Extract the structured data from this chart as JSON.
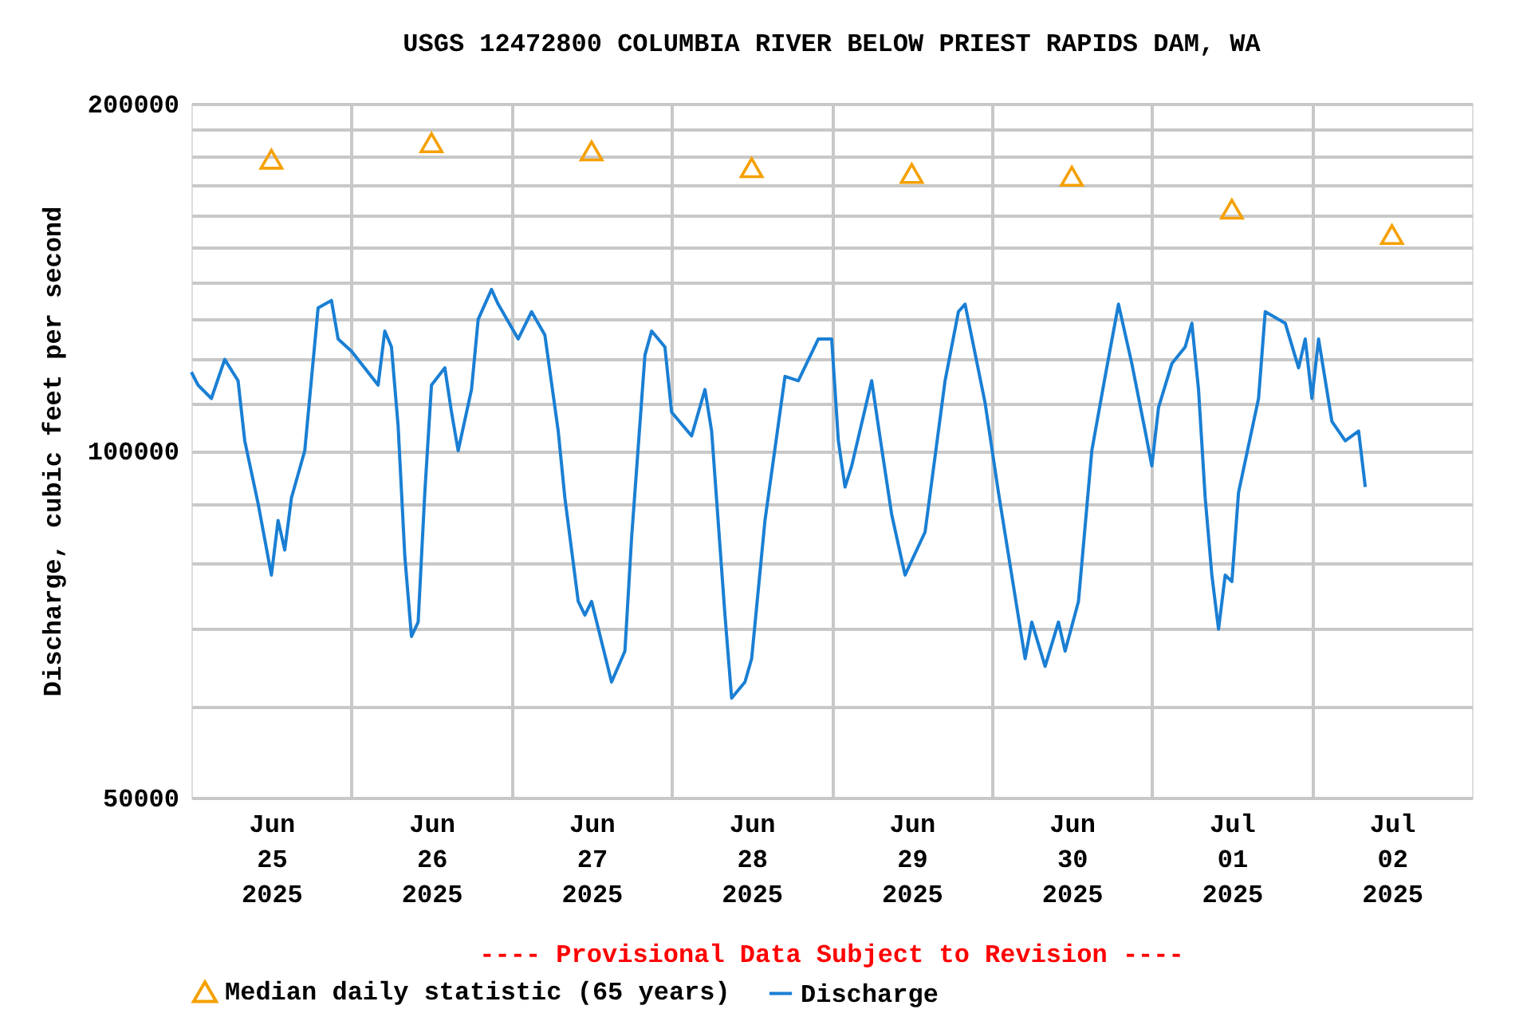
{
  "chart_data": {
    "type": "line",
    "title": "USGS 12472800 COLUMBIA RIVER BELOW PRIEST RAPIDS DAM, WA",
    "ylabel": "Discharge, cubic feet per second",
    "log": "y",
    "grid": true,
    "legend": "bottom",
    "xlim": [
      "2025-06-25T00:00",
      "2025-07-03T00:00"
    ],
    "xticks": [
      {
        "value": "2025-06-25T12:00",
        "label": "Jun\n25\n2025"
      },
      {
        "value": "2025-06-26T12:00",
        "label": "Jun\n26\n2025"
      },
      {
        "value": "2025-06-27T12:00",
        "label": "Jun\n27\n2025"
      },
      {
        "value": "2025-06-28T12:00",
        "label": "Jun\n28\n2025"
      },
      {
        "value": "2025-06-29T12:00",
        "label": "Jun\n29\n2025"
      },
      {
        "value": "2025-06-30T12:00",
        "label": "Jun\n30\n2025"
      },
      {
        "value": "2025-07-01T12:00",
        "label": "Jul\n01\n2025"
      },
      {
        "value": "2025-07-02T12:00",
        "label": "Jul\n02\n2025"
      },
      {
        "value": "2025-06-26T00:00",
        "label": null
      },
      {
        "value": "2025-06-27T00:00",
        "label": null
      },
      {
        "value": "2025-06-28T00:00",
        "label": null
      },
      {
        "value": "2025-06-29T00:00",
        "label": null
      },
      {
        "value": "2025-06-30T00:00",
        "label": null
      },
      {
        "value": "2025-07-01T00:00",
        "label": null
      },
      {
        "value": "2025-07-02T00:00",
        "label": null
      }
    ],
    "ylim": [
      50000,
      200000
    ],
    "yticks": [
      50000,
      {
        "value": 60000,
        "label": null
      },
      {
        "value": 70000,
        "label": null
      },
      {
        "value": 80000,
        "label": null
      },
      {
        "value": 90000,
        "label": null
      },
      100000,
      {
        "value": 110000,
        "label": null
      },
      {
        "value": 120000,
        "label": null
      },
      {
        "value": 130000,
        "label": null
      },
      {
        "value": 140000,
        "label": null
      },
      {
        "value": 150000,
        "label": null
      },
      {
        "value": 160000,
        "label": null
      },
      {
        "value": 170000,
        "label": null
      },
      {
        "value": 180000,
        "label": null
      },
      {
        "value": 190000,
        "label": null
      },
      200000
    ],
    "annotations": [
      "---- Provisional Data Subject to Revision ----"
    ],
    "series": [
      {
        "name": "Median daily statistic (65 years)",
        "type": "scatter",
        "marker": "triangle",
        "color": "#f5a000",
        "x": [
          "2025-06-25T12:00",
          "2025-06-26T12:00",
          "2025-06-27T12:00",
          "2025-06-28T12:00",
          "2025-06-29T12:00",
          "2025-06-30T12:00",
          "2025-07-01T12:00",
          "2025-07-02T12:00"
        ],
        "values": [
          179000,
          185000,
          182000,
          176000,
          174000,
          173000,
          162000,
          154000
        ]
      },
      {
        "name": "Discharge",
        "color": "#1a7fd4",
        "x": [
          "2025-06-25T00:00",
          "2025-06-25T01:00",
          "2025-06-25T03:00",
          "2025-06-25T05:00",
          "2025-06-25T07:00",
          "2025-06-25T08:00",
          "2025-06-25T10:00",
          "2025-06-25T12:00",
          "2025-06-25T13:00",
          "2025-06-25T14:00",
          "2025-06-25T15:00",
          "2025-06-25T17:00",
          "2025-06-25T19:00",
          "2025-06-25T21:00",
          "2025-06-25T22:00",
          "2025-06-26T00:00",
          "2025-06-26T04:00",
          "2025-06-26T05:00",
          "2025-06-26T06:00",
          "2025-06-26T07:00",
          "2025-06-26T08:00",
          "2025-06-26T09:00",
          "2025-06-26T10:00",
          "2025-06-26T11:00",
          "2025-06-26T12:00",
          "2025-06-26T14:00",
          "2025-06-26T15:00",
          "2025-06-26T16:00",
          "2025-06-26T18:00",
          "2025-06-26T19:00",
          "2025-06-26T21:00",
          "2025-06-26T22:00",
          "2025-06-27T01:00",
          "2025-06-27T03:00",
          "2025-06-27T05:00",
          "2025-06-27T07:00",
          "2025-06-27T08:00",
          "2025-06-27T10:00",
          "2025-06-27T11:00",
          "2025-06-27T12:00",
          "2025-06-27T15:00",
          "2025-06-27T17:00",
          "2025-06-27T18:00",
          "2025-06-27T20:00",
          "2025-06-27T21:00",
          "2025-06-27T23:00",
          "2025-06-28T00:00",
          "2025-06-28T03:00",
          "2025-06-28T05:00",
          "2025-06-28T06:00",
          "2025-06-28T08:00",
          "2025-06-28T09:00",
          "2025-06-28T11:00",
          "2025-06-28T12:00",
          "2025-06-28T14:00",
          "2025-06-28T17:00",
          "2025-06-28T19:00",
          "2025-06-28T22:00",
          "2025-06-29T00:00",
          "2025-06-29T01:00",
          "2025-06-29T02:00",
          "2025-06-29T03:00",
          "2025-06-29T06:00",
          "2025-06-29T07:00",
          "2025-06-29T09:00",
          "2025-06-29T11:00",
          "2025-06-29T14:00",
          "2025-06-29T17:00",
          "2025-06-29T19:00",
          "2025-06-29T20:00",
          "2025-06-29T23:00",
          "2025-06-30T01:00",
          "2025-06-30T05:00",
          "2025-06-30T06:00",
          "2025-06-30T08:00",
          "2025-06-30T10:00",
          "2025-06-30T11:00",
          "2025-06-30T13:00",
          "2025-06-30T15:00",
          "2025-06-30T17:00",
          "2025-06-30T19:00",
          "2025-06-30T21:00",
          "2025-06-30T23:00",
          "2025-07-01T00:00",
          "2025-07-01T01:00",
          "2025-07-01T03:00",
          "2025-07-01T05:00",
          "2025-07-01T06:00",
          "2025-07-01T07:00",
          "2025-07-01T08:00",
          "2025-07-01T09:00",
          "2025-07-01T10:00",
          "2025-07-01T11:00",
          "2025-07-01T12:00",
          "2025-07-01T13:00",
          "2025-07-01T16:00",
          "2025-07-01T17:00",
          "2025-07-01T20:00",
          "2025-07-01T22:00",
          "2025-07-01T23:00",
          "2025-07-02T00:00",
          "2025-07-02T01:00",
          "2025-07-02T03:00",
          "2025-07-02T05:00",
          "2025-07-02T07:00",
          "2025-07-02T08:00"
        ],
        "values": [
          117000,
          114000,
          111000,
          120000,
          115000,
          102000,
          90000,
          78000,
          87000,
          82000,
          91000,
          100000,
          133000,
          135000,
          125000,
          122000,
          114000,
          127000,
          123000,
          105000,
          81000,
          69000,
          71000,
          92000,
          114000,
          118000,
          108000,
          100000,
          113000,
          130000,
          138000,
          134000,
          125000,
          132000,
          126000,
          104000,
          91000,
          74000,
          72000,
          74000,
          63000,
          67000,
          84000,
          121000,
          127000,
          123000,
          108000,
          103000,
          113000,
          104000,
          72000,
          61000,
          63000,
          66000,
          87000,
          116000,
          115000,
          125000,
          125000,
          102000,
          93000,
          97000,
          115000,
          105000,
          88000,
          78000,
          85000,
          115000,
          132000,
          134000,
          110000,
          92000,
          66000,
          71000,
          65000,
          71000,
          67000,
          74000,
          100000,
          116000,
          134000,
          119000,
          104000,
          97000,
          109000,
          119000,
          123000,
          129000,
          113000,
          91000,
          78000,
          70000,
          78000,
          77000,
          92000,
          111000,
          132000,
          129000,
          118000,
          125000,
          111000,
          125000,
          106000,
          102000,
          104000,
          93000
        ]
      }
    ]
  }
}
